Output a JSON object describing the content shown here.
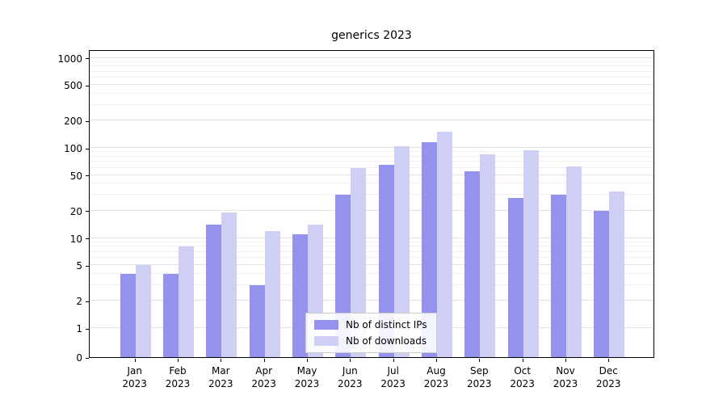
{
  "chart_data": {
    "type": "bar",
    "title": "generics 2023",
    "categories": [
      "Jan",
      "Feb",
      "Mar",
      "Apr",
      "May",
      "Jun",
      "Jul",
      "Aug",
      "Sep",
      "Oct",
      "Nov",
      "Dec"
    ],
    "category_year": "2023",
    "series": [
      {
        "name": "Nb of distinct IPs",
        "color": "#9393ee",
        "values": [
          4,
          4,
          14,
          3,
          11,
          30,
          65,
          115,
          55,
          28,
          30,
          20
        ]
      },
      {
        "name": "Nb of downloads",
        "color": "#cfcff6",
        "values": [
          5,
          8,
          19,
          12,
          14,
          60,
          105,
          150,
          85,
          95,
          62,
          33
        ]
      }
    ],
    "yscale": "symlog",
    "yticks": [
      0,
      1,
      2,
      5,
      10,
      20,
      50,
      100,
      200,
      500,
      1000
    ],
    "ylim": [
      0,
      1200
    ],
    "grid": true,
    "legend_position": "lower center"
  }
}
